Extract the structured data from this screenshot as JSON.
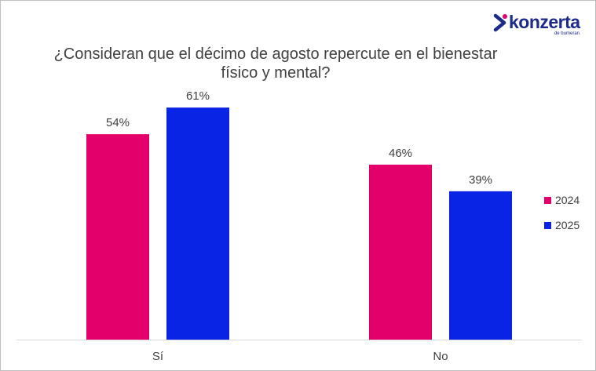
{
  "logo": {
    "name": "konzerta",
    "tagline": "de bumeran",
    "color": "#1c2a8c",
    "accent": "#e0006e"
  },
  "chart_data": {
    "type": "bar",
    "title": "¿Consideran que el décimo de agosto repercute en el bienestar físico y mental?",
    "categories": [
      "Sí",
      "No"
    ],
    "series": [
      {
        "name": "2024",
        "values": [
          54,
          46
        ],
        "labels": [
          "54%",
          "46%"
        ],
        "color": "#e3006b"
      },
      {
        "name": "2025",
        "values": [
          61,
          39
        ],
        "labels": [
          "61%",
          "39%"
        ],
        "color": "#0a24e6"
      }
    ],
    "ylim": [
      0,
      100
    ],
    "grid": false,
    "legend": "right"
  }
}
